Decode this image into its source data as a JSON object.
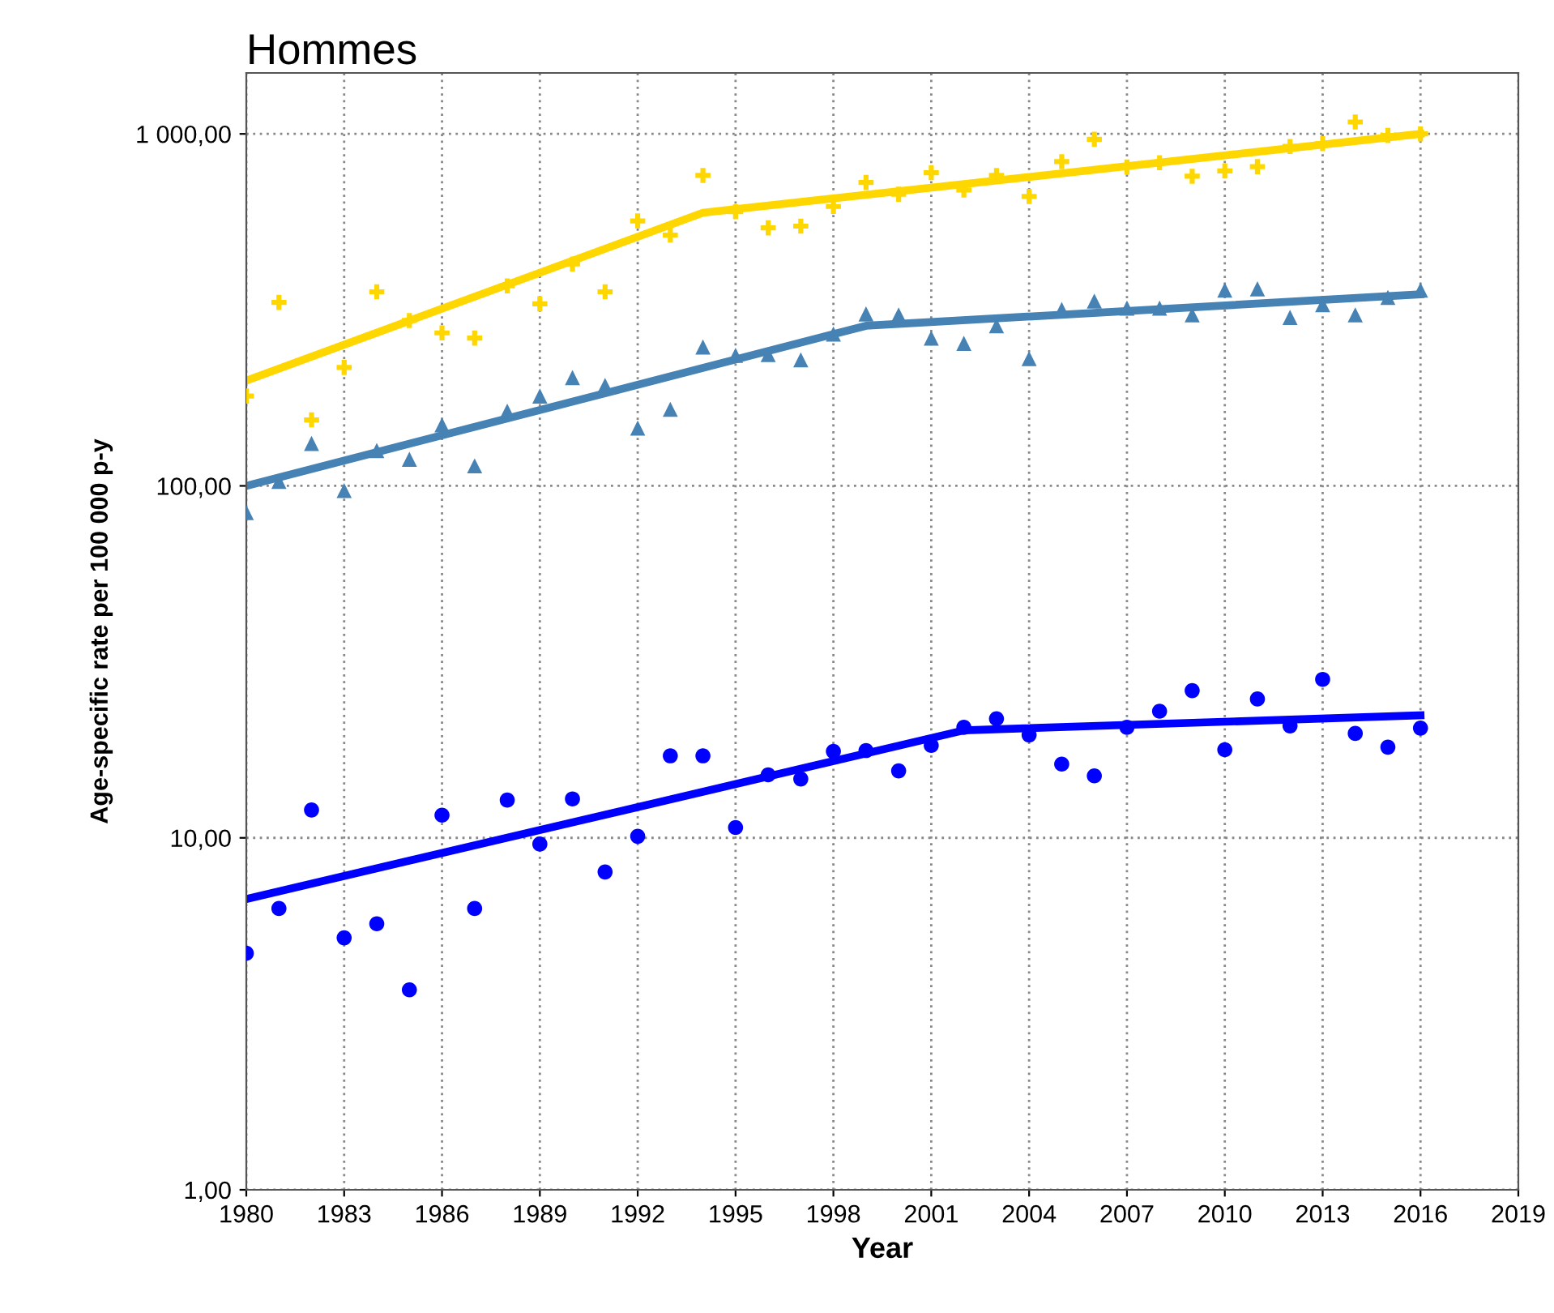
{
  "chart_data": {
    "type": "scatter",
    "title": "Hommes",
    "xlabel": "Year",
    "ylabel": "Age-specific rate per 100 000 p-y",
    "log": "y",
    "grid": true,
    "legend": false,
    "x": [
      1980,
      1981,
      1982,
      1983,
      1984,
      1985,
      1986,
      1987,
      1988,
      1989,
      1990,
      1991,
      1992,
      1993,
      1994,
      1995,
      1996,
      1997,
      1998,
      1999,
      2000,
      2001,
      2002,
      2003,
      2004,
      2005,
      2006,
      2007,
      2008,
      2009,
      2010,
      2011,
      2012,
      2013,
      2014,
      2015,
      2016
    ],
    "xlim": [
      1980,
      2019
    ],
    "xticks": [
      1980,
      1983,
      1986,
      1989,
      1992,
      1995,
      1998,
      2001,
      2004,
      2007,
      2010,
      2013,
      2016,
      2019
    ],
    "ylim": [
      1,
      1490
    ],
    "yticks": [
      {
        "value": 1,
        "label": "1,00"
      },
      {
        "value": 10,
        "label": "10,00"
      },
      {
        "value": 100,
        "label": "100,00"
      },
      {
        "value": 1000,
        "label": "1 000,00"
      }
    ],
    "series": [
      {
        "marker": "cross",
        "color": "#ffd700",
        "values": [
          180,
          332,
          154,
          217,
          356,
          295,
          272,
          263,
          370,
          329,
          427,
          356,
          566,
          516,
          762,
          601,
          541,
          547,
          622,
          728,
          674,
          776,
          693,
          762,
          664,
          834,
          965,
          805,
          828,
          758,
          785,
          807,
          921,
          938,
          1081,
          990,
          1000
        ]
      },
      {
        "type": "line",
        "marker": "none",
        "color": "#ffd700",
        "x": [
          1980,
          1994,
          2016
        ],
        "values": [
          199,
          597,
          1000
        ]
      },
      {
        "marker": "triangle",
        "color": "#4682b4",
        "values": [
          84,
          103,
          132,
          97,
          126,
          119,
          149,
          114,
          163,
          180,
          203,
          193,
          146,
          165,
          248,
          235,
          236,
          228,
          270,
          308,
          306,
          263,
          254,
          285,
          230,
          317,
          335,
          320,
          320,
          306,
          360,
          363,
          301,
          327,
          306,
          343,
          360
        ]
      },
      {
        "type": "line",
        "marker": "none",
        "color": "#4682b4",
        "x": [
          1980,
          1999,
          2016
        ],
        "values": [
          100,
          285,
          350
        ]
      },
      {
        "marker": "circle",
        "color": "#0000ff",
        "values": [
          4.7,
          6.3,
          12.0,
          5.2,
          5.7,
          3.7,
          11.6,
          6.3,
          12.8,
          9.6,
          12.9,
          8.0,
          10.1,
          17.1,
          17.1,
          10.7,
          15.1,
          14.7,
          17.6,
          17.7,
          15.5,
          18.3,
          20.6,
          21.8,
          19.6,
          16.2,
          15.0,
          20.6,
          22.9,
          26.2,
          17.8,
          24.8,
          20.8,
          28.2,
          19.8,
          18.1,
          20.5
        ]
      },
      {
        "type": "line",
        "marker": "none",
        "color": "#0000ff",
        "x": [
          1980,
          2002,
          2016
        ],
        "values": [
          6.7,
          20.2,
          22.3
        ]
      }
    ]
  }
}
